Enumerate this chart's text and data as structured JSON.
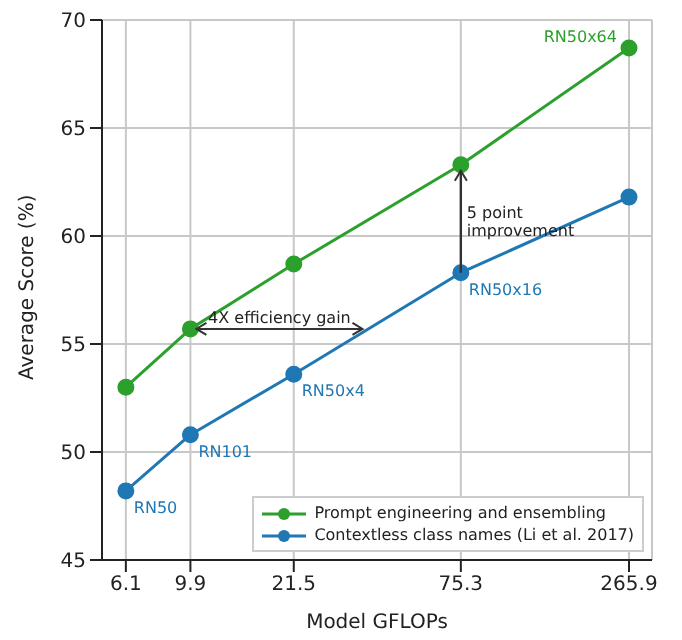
{
  "chart_data": {
    "type": "line",
    "xlabel": "Model GFLOPs",
    "ylabel": "Average Score (%)",
    "log": "x",
    "x": [
      6.1,
      9.9,
      21.5,
      75.3,
      265.9
    ],
    "xlim": [
      5.1,
      316
    ],
    "xticks": [
      6.1,
      9.9,
      21.5,
      75.3,
      265.9
    ],
    "ylim": [
      45,
      70
    ],
    "yticks": [
      45,
      50,
      55,
      60,
      65,
      70
    ],
    "grid": true,
    "marker": "circle",
    "legend": "bottom right",
    "series": [
      {
        "name": "Prompt engineering and ensembling",
        "color": "#2ca02c",
        "values": [
          53.0,
          55.7,
          58.7,
          63.3,
          68.7
        ]
      },
      {
        "name": "Contextless class names (Li et al. 2017)",
        "color": "#1f77b4",
        "values": [
          48.2,
          50.8,
          53.6,
          58.3,
          61.8
        ]
      }
    ],
    "annotations": [
      {
        "text": "RN50",
        "x": 6.1,
        "y": 48.2
      },
      {
        "text": "RN101",
        "x": 9.9,
        "y": 50.8
      },
      {
        "text": "RN50x4",
        "x": 21.5,
        "y": 53.6
      },
      {
        "text": "RN50x16",
        "x": 75.3,
        "y": 58.3
      },
      {
        "text": "RN50x64",
        "x": 265.9,
        "y": 68.7
      },
      {
        "text": "4X efficiency gain",
        "x": 36,
        "y": 55.7
      },
      {
        "text": "5 point improvement",
        "x": 75.3,
        "y": 63.3
      }
    ]
  }
}
